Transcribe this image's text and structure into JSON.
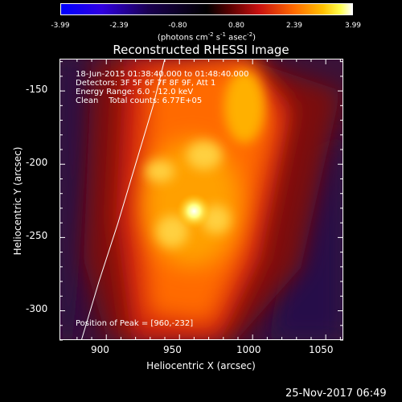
{
  "colorbar": {
    "tick_values": [
      "-3.99",
      "-2.39",
      "-0.80",
      "0.80",
      "2.39",
      "3.99"
    ],
    "units_text": "(photons cm",
    "units_exp1": "-2",
    "units_mid": " s",
    "units_exp2": "-1",
    "units_mid2": " asec",
    "units_exp3": "-2",
    "units_end": ")"
  },
  "title": "Reconstructed RHESSI Image",
  "info_lines": [
    "18-Jun-2015 01:38:40.000 to 01:48:40.000",
    "Detectors: 3F 5F 6F 7F 8F 9F, Att 1",
    "Energy Range: 6.0 - 12.0 keV",
    "Clean    Total counts: 6.77E+05"
  ],
  "peak_text": "Position of Peak = [960,-232]",
  "timestamp": "25-Nov-2017 06:49",
  "chart_data": {
    "type": "heatmap",
    "title": "Reconstructed RHESSI Image",
    "xlabel": "Heliocentric X (arcsec)",
    "ylabel": "Heliocentric Y (arcsec)",
    "xlim": [
      868,
      1062
    ],
    "ylim": [
      -320,
      -128
    ],
    "x_ticks": [
      900,
      950,
      1000,
      1050
    ],
    "y_ticks": [
      -150,
      -200,
      -250,
      -300
    ],
    "colorbar_range": [
      -3.99,
      3.99
    ],
    "colorbar_ticks": [
      -3.99,
      -2.39,
      -0.8,
      0.8,
      2.39,
      3.99
    ],
    "colormap": "hot/cold (blue-black-red-yellow-white)",
    "peak": [
      960,
      -232
    ],
    "limb_curve": [
      [
        883,
        -320
      ],
      [
        895,
        -280
      ],
      [
        908,
        -240
      ],
      [
        920,
        -200
      ],
      [
        932,
        -160
      ],
      [
        940,
        -128
      ]
    ]
  }
}
